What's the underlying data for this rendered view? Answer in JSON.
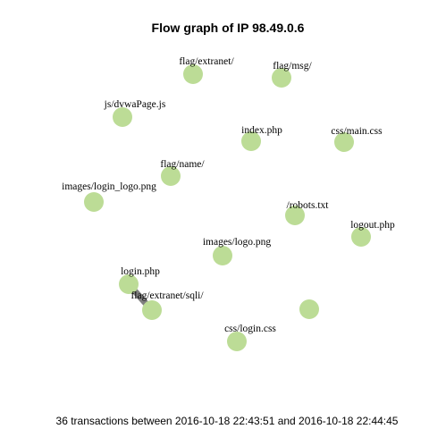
{
  "title": "Flow graph of IP 98.49.0.6",
  "caption": "36 transactions between 2016-10-18 22:43:51 and 2016-10-18 22:44:45",
  "colors": {
    "node": "#bcdc96",
    "edge": "#7f7f7f"
  },
  "nodes": [
    {
      "id": "flag-extranet",
      "label": "flag/extranet/"
    },
    {
      "id": "flag-msg",
      "label": "flag/msg/"
    },
    {
      "id": "js-dvwapage",
      "label": "js/dvwaPage.js"
    },
    {
      "id": "index-php",
      "label": "index.php"
    },
    {
      "id": "css-main",
      "label": "css/main.css"
    },
    {
      "id": "flag-name",
      "label": "flag/name/"
    },
    {
      "id": "images-login-logo",
      "label": "images/login_logo.png"
    },
    {
      "id": "robots-txt",
      "label": "/robots.txt"
    },
    {
      "id": "logout-php",
      "label": "logout.php"
    },
    {
      "id": "images-logo",
      "label": "images/logo.png"
    },
    {
      "id": "login-php",
      "label": "login.php"
    },
    {
      "id": "flag-extranet-sqli",
      "label": "flag/extranet/sqli/"
    },
    {
      "id": "unlabeled-node",
      "label": ""
    },
    {
      "id": "css-login",
      "label": "css/login.css"
    }
  ],
  "edges": [
    {
      "source": "login-php",
      "target": "flag-extranet-sqli"
    }
  ]
}
